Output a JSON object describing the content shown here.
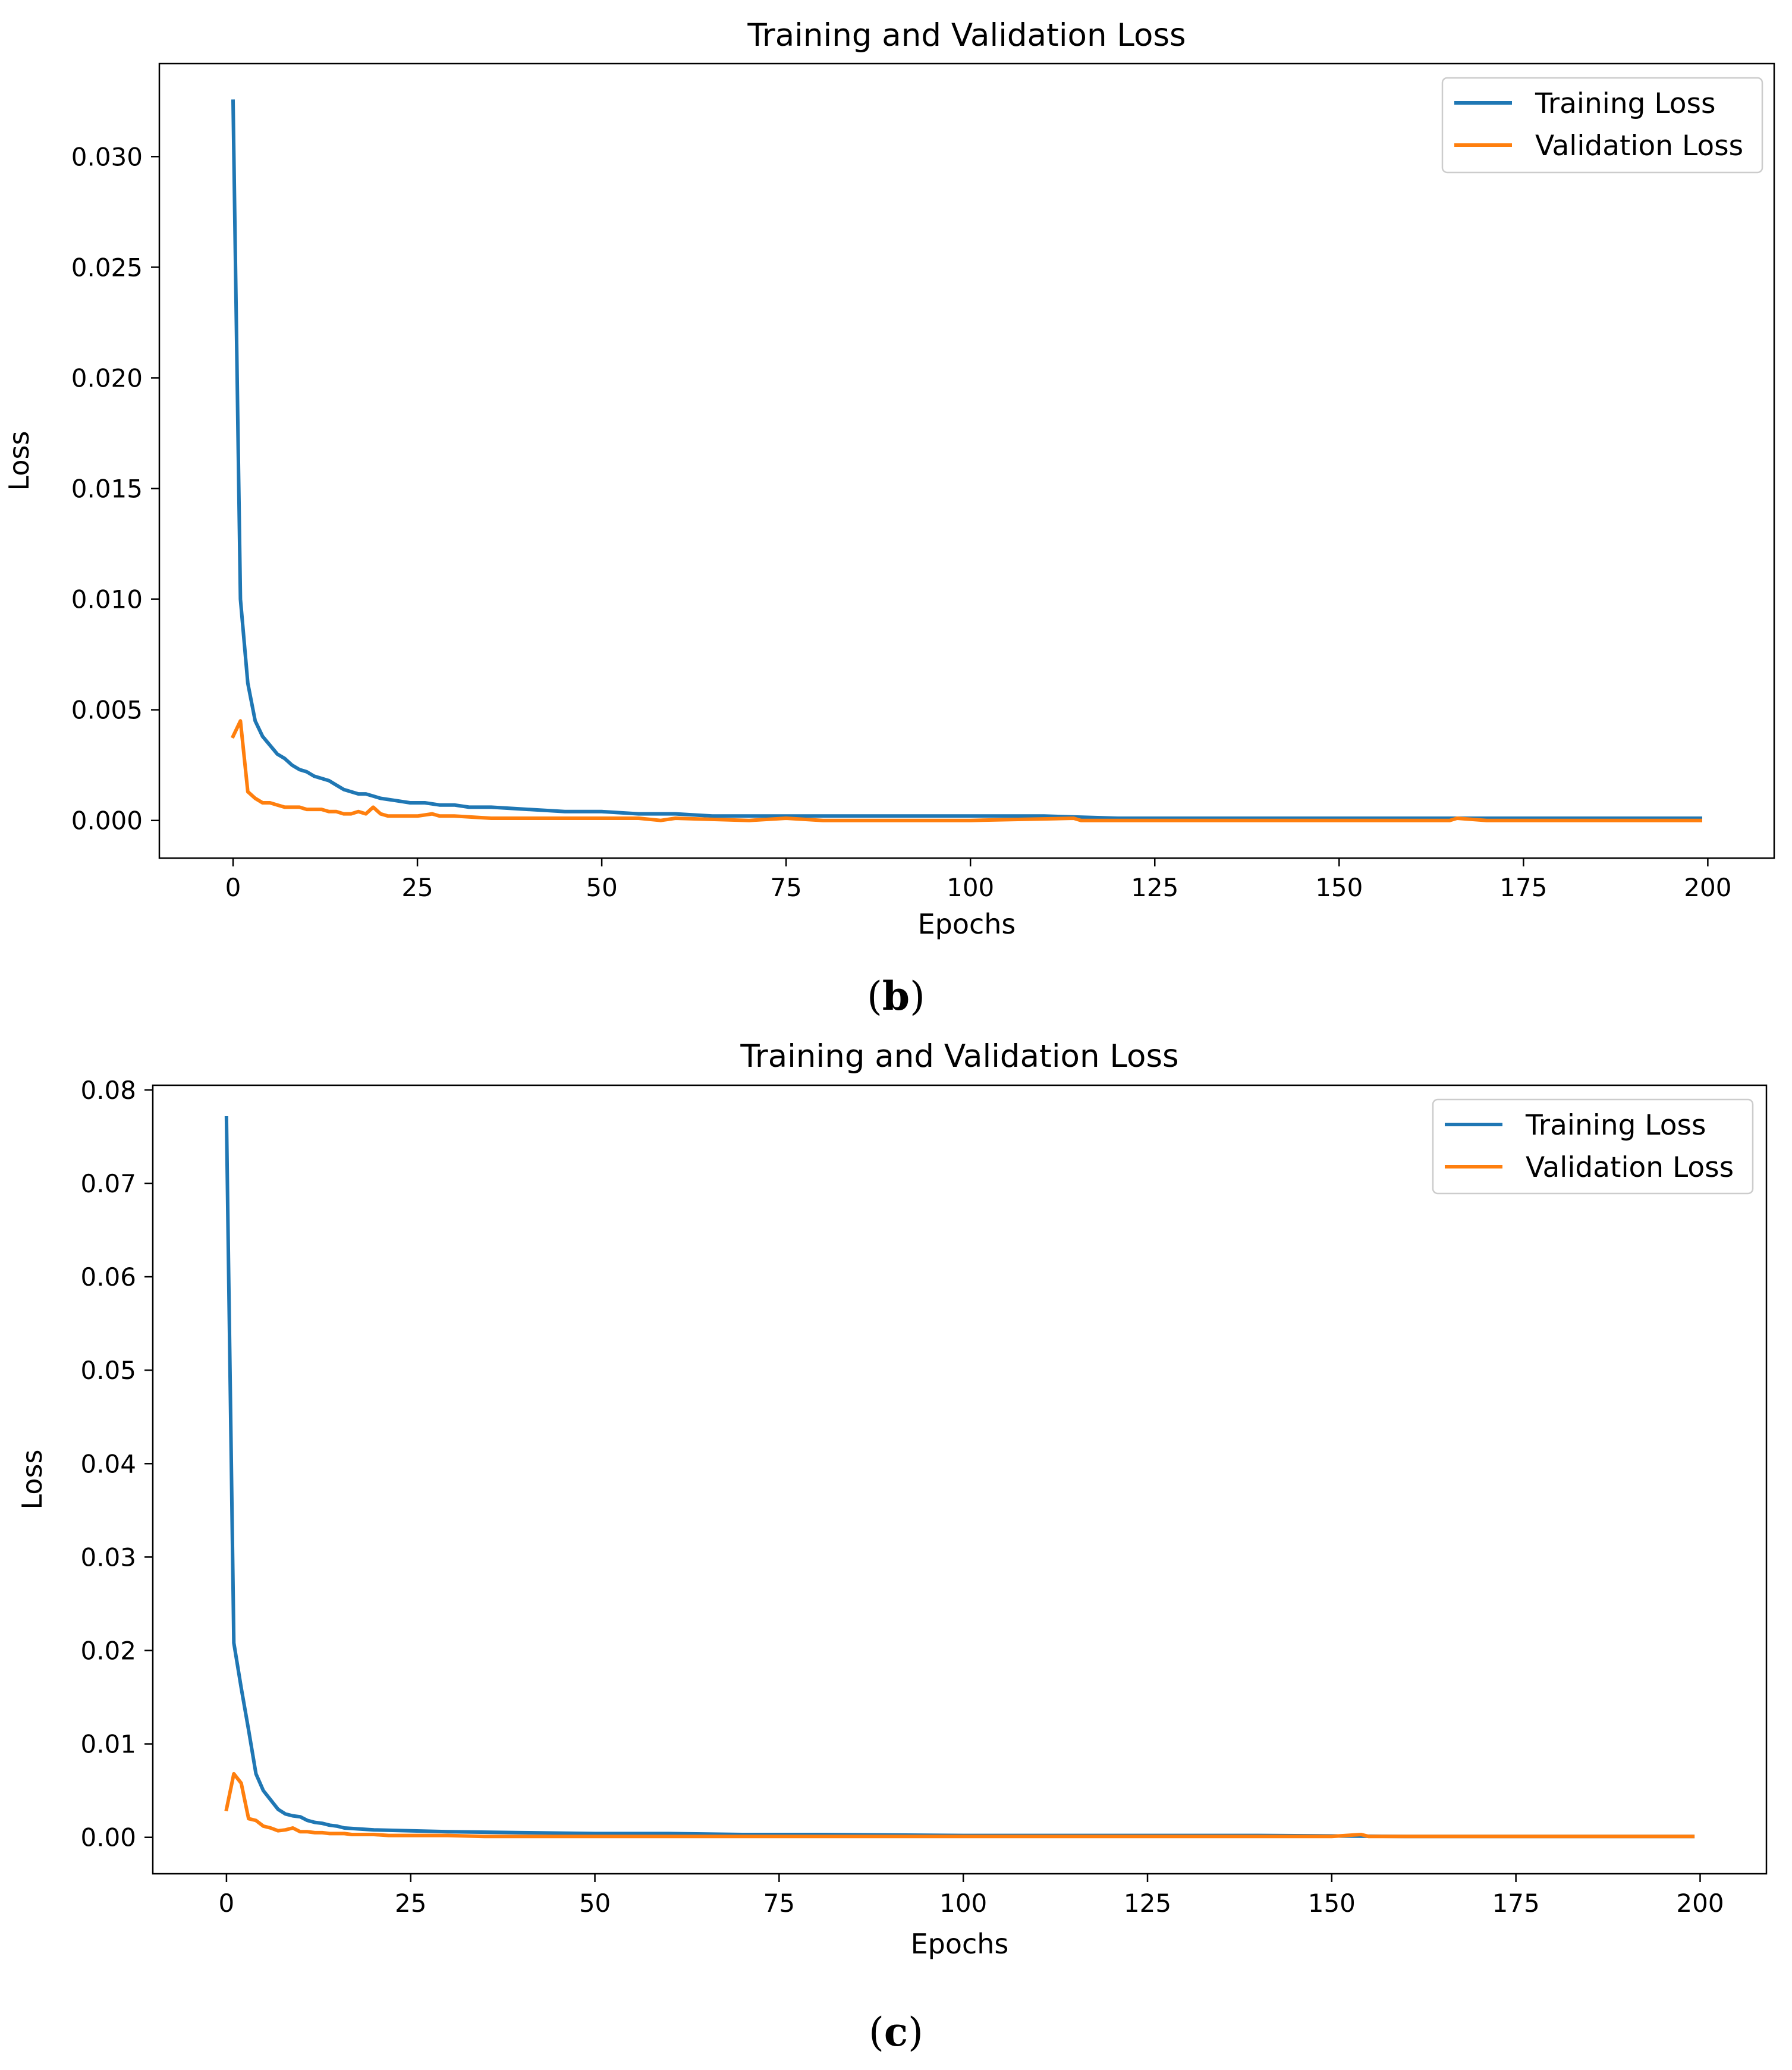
{
  "chart_data": [
    {
      "type": "line",
      "title": "Training and Validation Loss",
      "xlabel": "Epochs",
      "ylabel": "Loss",
      "xlim": [
        -10,
        209
      ],
      "ylim": [
        -0.0017,
        0.0342
      ],
      "xticks": [
        0,
        25,
        50,
        75,
        100,
        125,
        150,
        175,
        200
      ],
      "xtick_labels": [
        "0",
        "25",
        "50",
        "75",
        "100",
        "125",
        "150",
        "175",
        "200"
      ],
      "yticks": [
        0.0,
        0.005,
        0.01,
        0.015,
        0.02,
        0.025,
        0.03
      ],
      "ytick_labels": [
        "0.000",
        "0.005",
        "0.010",
        "0.015",
        "0.020",
        "0.025",
        "0.030"
      ],
      "legend": "top-right",
      "caption_open": "(",
      "caption_letter": "b",
      "caption_close": ")",
      "series": [
        {
          "name": "Training Loss",
          "color": "#1f77b4",
          "x": [
            0,
            1,
            2,
            3,
            4,
            5,
            6,
            7,
            8,
            9,
            10,
            11,
            12,
            13,
            14,
            15,
            16,
            17,
            18,
            19,
            20,
            22,
            24,
            26,
            28,
            30,
            32,
            35,
            40,
            45,
            50,
            55,
            60,
            65,
            70,
            80,
            90,
            100,
            110,
            120,
            130,
            140,
            150,
            160,
            170,
            180,
            190,
            199
          ],
          "y": [
            0.0325,
            0.01,
            0.0062,
            0.0045,
            0.0038,
            0.0034,
            0.003,
            0.0028,
            0.0025,
            0.0023,
            0.0022,
            0.002,
            0.0019,
            0.0018,
            0.0016,
            0.0014,
            0.0013,
            0.0012,
            0.0012,
            0.0011,
            0.001,
            0.0009,
            0.0008,
            0.0008,
            0.0007,
            0.0007,
            0.0006,
            0.0006,
            0.0005,
            0.0004,
            0.0004,
            0.0003,
            0.0003,
            0.0002,
            0.0002,
            0.0002,
            0.0002,
            0.0002,
            0.0002,
            0.0001,
            0.0001,
            0.0001,
            0.0001,
            0.0001,
            0.0001,
            0.0001,
            0.0001,
            0.0001
          ]
        },
        {
          "name": "Validation Loss",
          "color": "#ff7f0e",
          "x": [
            0,
            1,
            2,
            3,
            4,
            5,
            6,
            7,
            8,
            9,
            10,
            11,
            12,
            13,
            14,
            15,
            16,
            17,
            18,
            19,
            20,
            21,
            22,
            25,
            27,
            28,
            30,
            35,
            40,
            50,
            55,
            58,
            60,
            70,
            75,
            80,
            100,
            114,
            115,
            120,
            140,
            165,
            166,
            170,
            199
          ],
          "y": [
            0.0038,
            0.0045,
            0.0013,
            0.001,
            0.0008,
            0.0008,
            0.0007,
            0.0006,
            0.0006,
            0.0006,
            0.0005,
            0.0005,
            0.0005,
            0.0004,
            0.0004,
            0.0003,
            0.0003,
            0.0004,
            0.0003,
            0.0006,
            0.0003,
            0.0002,
            0.0002,
            0.0002,
            0.0003,
            0.0002,
            0.0002,
            0.0001,
            0.0001,
            0.0001,
            0.0001,
            0.0,
            0.0001,
            0.0,
            0.0001,
            0.0,
            0.0,
            0.0001,
            0.0,
            0.0,
            0.0,
            0.0,
            0.0001,
            0.0,
            0.0
          ]
        }
      ]
    },
    {
      "type": "line",
      "title": "Training and Validation Loss",
      "xlabel": "Epochs",
      "ylabel": "Loss",
      "xlim": [
        -10,
        209
      ],
      "ylim": [
        -0.0039,
        0.0805
      ],
      "xticks": [
        0,
        25,
        50,
        75,
        100,
        125,
        150,
        175,
        200
      ],
      "xtick_labels": [
        "0",
        "25",
        "50",
        "75",
        "100",
        "125",
        "150",
        "175",
        "200"
      ],
      "yticks": [
        0.0,
        0.01,
        0.02,
        0.03,
        0.04,
        0.05,
        0.06,
        0.07,
        0.08
      ],
      "ytick_labels": [
        "0.00",
        "0.01",
        "0.02",
        "0.03",
        "0.04",
        "0.05",
        "0.06",
        "0.07",
        "0.08"
      ],
      "legend": "top-right",
      "caption_open": "(",
      "caption_letter": "c",
      "caption_close": ")",
      "series": [
        {
          "name": "Training Loss",
          "color": "#1f77b4",
          "x": [
            0,
            1,
            2,
            3,
            4,
            5,
            6,
            7,
            8,
            9,
            10,
            11,
            12,
            13,
            14,
            15,
            16,
            18,
            20,
            25,
            30,
            40,
            50,
            60,
            70,
            80,
            100,
            120,
            140,
            160,
            180,
            199
          ],
          "y": [
            0.077,
            0.0208,
            0.016,
            0.0115,
            0.0068,
            0.005,
            0.004,
            0.003,
            0.0025,
            0.0023,
            0.0022,
            0.0018,
            0.0016,
            0.0015,
            0.0013,
            0.0012,
            0.001,
            0.0009,
            0.0008,
            0.0007,
            0.0006,
            0.0005,
            0.0004,
            0.0004,
            0.0003,
            0.0003,
            0.0002,
            0.0002,
            0.0002,
            0.0001,
            0.0001,
            0.0001
          ]
        },
        {
          "name": "Validation Loss",
          "color": "#ff7f0e",
          "x": [
            0,
            1,
            2,
            3,
            4,
            5,
            6,
            7,
            8,
            9,
            10,
            11,
            12,
            13,
            14,
            15,
            16,
            17,
            18,
            20,
            22,
            25,
            30,
            35,
            40,
            50,
            60,
            75,
            100,
            125,
            150,
            154,
            155,
            175,
            199
          ],
          "y": [
            0.003,
            0.0068,
            0.0058,
            0.002,
            0.0018,
            0.0012,
            0.001,
            0.0007,
            0.0008,
            0.001,
            0.0006,
            0.0006,
            0.0005,
            0.0005,
            0.0004,
            0.0004,
            0.0004,
            0.0003,
            0.0003,
            0.0003,
            0.0002,
            0.0002,
            0.0002,
            0.0001,
            0.0001,
            0.0001,
            0.0001,
            0.0001,
            0.0001,
            0.0001,
            0.0001,
            0.0003,
            0.0001,
            0.0001,
            0.0001
          ]
        }
      ]
    }
  ]
}
